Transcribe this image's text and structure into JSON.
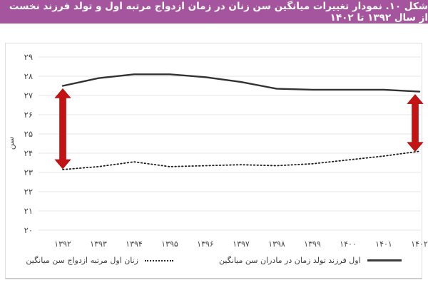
{
  "header": {
    "title": "شکل ۱۰. نمودار تغییرات میانگین سن زنان در زمان ازدواج مرتبه اول و تولد فرزند نخست از سال ۱۳۹۲ تا ۱۴۰۲",
    "background_color": "#a4559d",
    "text_color": "#ffffff"
  },
  "legend": {
    "items": [
      {
        "label": "میانگین سن ازدواج مرتبه اول زنان",
        "symbol": "dotted-line"
      },
      {
        "label": "میانگین سن مادران در زمان تولد فرزند اول",
        "symbol": "solid-line"
      }
    ]
  },
  "chart_data": {
    "type": "line",
    "title": "شکل ۱۰. نمودار تغییرات میانگین سن زنان در زمان ازدواج مرتبه اول و تولد فرزند نخست از سال ۱۳۹۲ تا ۱۴۰۲",
    "xlabel": "",
    "ylabel": "سن",
    "ylim": [
      20,
      29
    ],
    "grid": "horizontal",
    "legend_position": "bottom",
    "x_values": [
      1392,
      1393,
      1394,
      1395,
      1396,
      1397,
      1398,
      1399,
      1400,
      1401,
      1402
    ],
    "x_ticklabels": [
      "۱۳۹۲",
      "۱۳۹۳",
      "۱۳۹۴",
      "۱۳۹۵",
      "۱۳۹۶",
      "۱۳۹۷",
      "۱۳۹۸",
      "۱۳۹۹",
      "۱۴۰۰",
      "۱۴۰۱",
      "۱۴۰۲"
    ],
    "y_ticks": [
      20,
      21,
      22,
      23,
      24,
      25,
      26,
      27,
      28,
      29
    ],
    "y_ticklabels": [
      "۲۰",
      "۲۱",
      "۲۲",
      "۲۳",
      "۲۴",
      "۲۵",
      "۲۶",
      "۲۷",
      "۲۸",
      "۲۹"
    ],
    "series": [
      {
        "name": "میانگین سن مادران در زمان تولد فرزند اول",
        "style": "solid",
        "color": "#323232",
        "values": [
          27.5,
          27.9,
          28.1,
          28.1,
          27.95,
          27.7,
          27.35,
          27.3,
          27.3,
          27.3,
          27.2
        ]
      },
      {
        "name": "میانگین سن ازدواج مرتبه اول زنان",
        "style": "dotted",
        "color": "#1f1f1f",
        "values": [
          23.15,
          23.3,
          23.55,
          23.3,
          23.35,
          23.4,
          23.35,
          23.45,
          23.65,
          23.85,
          24.1
        ]
      }
    ],
    "annotations": {
      "gap_arrows": [
        {
          "x_index": 0,
          "from": 23.15,
          "to": 27.5,
          "dx": 0,
          "color": "#c51212"
        },
        {
          "x_index": 10,
          "from": 24.05,
          "to": 27.2,
          "dx": -6,
          "color": "#c51212"
        }
      ]
    },
    "colors": {
      "gridline": "#e4e4e4",
      "tick_text": "#474747",
      "arrow_red": "#c51212"
    }
  }
}
